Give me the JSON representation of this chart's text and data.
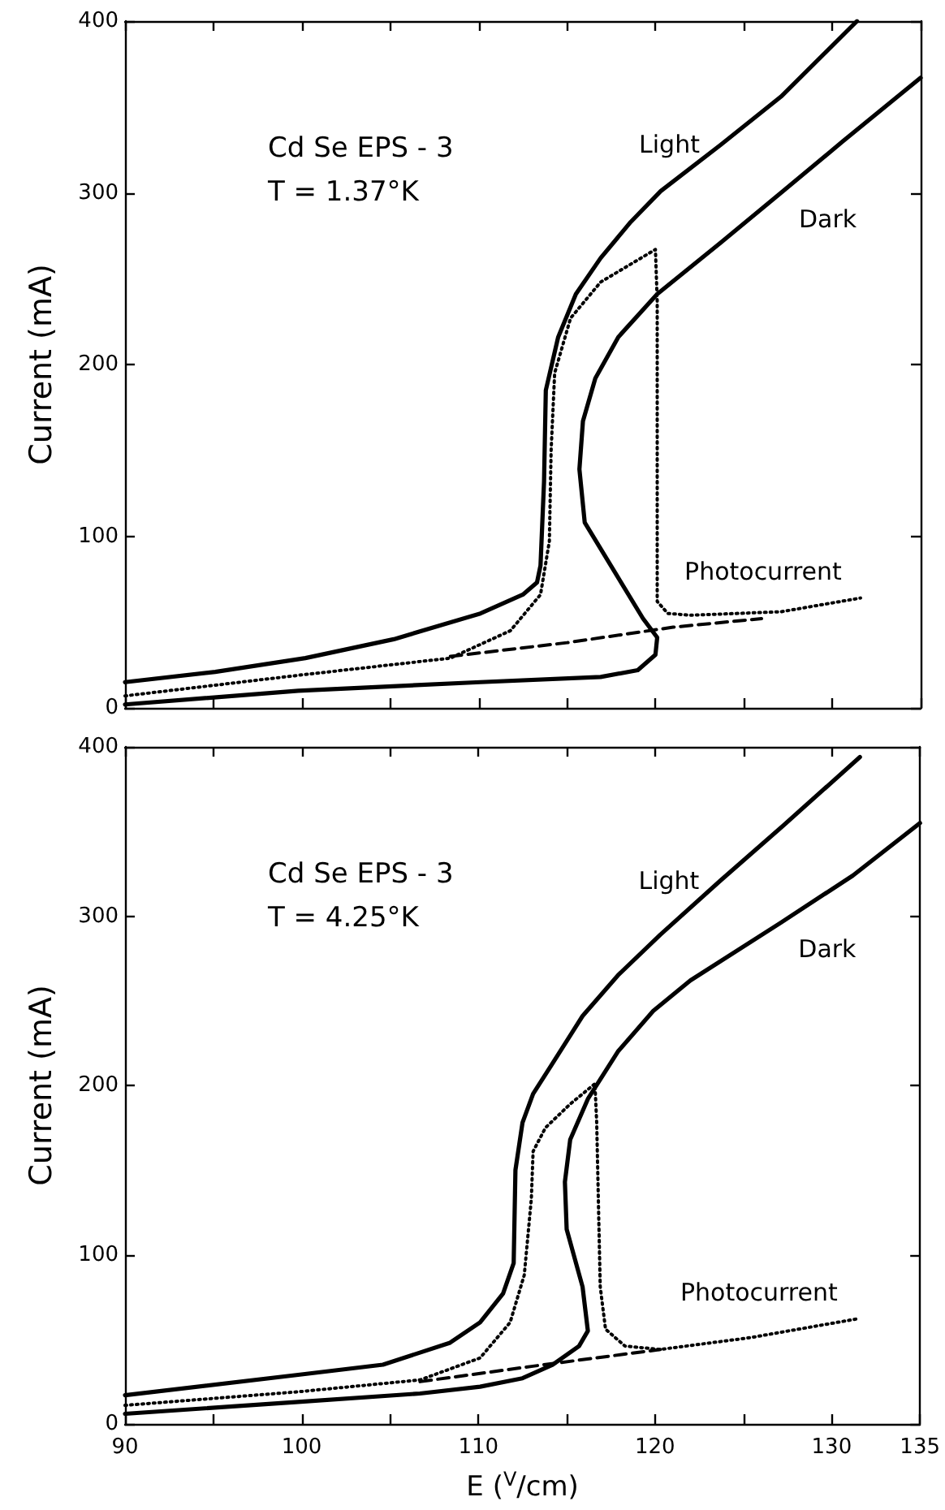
{
  "chart_data": [
    {
      "type": "line",
      "ylabel": "Current (mA)",
      "annotations": [
        "Cd Se EPS - 3",
        "T = 1.37°K"
      ],
      "xlim": [
        90,
        135
      ],
      "xticks": [
        90,
        {
          "value": 95,
          "label": null
        },
        100,
        {
          "value": 105,
          "label": null
        },
        110,
        {
          "value": 115,
          "label": null
        },
        120,
        {
          "value": 125,
          "label": null
        },
        130,
        135
      ],
      "ylim": [
        0,
        400
      ],
      "yticks": [
        0,
        100,
        200,
        300,
        400
      ],
      "tick_labels": "y",
      "marker": "none",
      "series": [
        {
          "name": "Light",
          "color": "#000000",
          "line_style": "solid",
          "x": [
            90,
            95.1,
            100.2,
            105.2,
            110.1,
            112.5,
            113.3,
            113.5,
            113.7,
            113.8,
            114.5,
            115.5,
            116.9,
            118.6,
            120.3,
            123.7,
            127.1,
            131.4
          ],
          "values": [
            15,
            21,
            29,
            40,
            55,
            66,
            73,
            83,
            132,
            185,
            216,
            241,
            262,
            283,
            301,
            328,
            356,
            400
          ]
        },
        {
          "name": "Dark",
          "color": "#000000",
          "line_style": "solid",
          "x": [
            90,
            99.8,
            110.1,
            116.9,
            119.0,
            120.0,
            120.1,
            119.3,
            116.0,
            115.7,
            115.9,
            116.6,
            117.9,
            120.1,
            123.7,
            127.1,
            130.6,
            135
          ],
          "values": [
            2,
            10,
            15,
            18,
            22,
            31,
            41,
            52,
            108,
            139,
            167,
            192,
            216,
            241,
            271,
            300,
            330,
            367
          ]
        },
        {
          "name": "Photocurrent",
          "color": "#000000",
          "line_style": "dotted",
          "x": [
            90,
            99.8,
            108.4,
            111.8,
            113.5,
            114.0,
            114.1,
            114.3,
            115.2,
            116.9,
            120.0,
            120.1,
            120.1,
            120.7,
            122.0,
            127.1,
            131.6
          ],
          "values": [
            7,
            19,
            29,
            45,
            66,
            97,
            150,
            195,
            227,
            248,
            267,
            237,
            62,
            55,
            54,
            56,
            64
          ]
        },
        {
          "color": "#000000",
          "line_style": "dashed",
          "x": [
            108.4,
            115,
            121,
            126
          ],
          "values": [
            30,
            38,
            47,
            52
          ]
        }
      ]
    },
    {
      "type": "line",
      "xlabel": "E ($^{V}$/cm)",
      "ylabel": "Current (mA)",
      "annotations": [
        "Cd Se EPS - 3",
        "T = 4.25°K"
      ],
      "xlim": [
        90,
        135
      ],
      "xticks": [
        90,
        {
          "value": 95,
          "label": null
        },
        100,
        {
          "value": 105,
          "label": null
        },
        110,
        {
          "value": 115,
          "label": null
        },
        120,
        {
          "value": 125,
          "label": null
        },
        130,
        135
      ],
      "ylim": [
        0,
        400
      ],
      "yticks": [
        0,
        100,
        200,
        300,
        400
      ],
      "marker": "none",
      "series": [
        {
          "name": "Light",
          "color": "#000000",
          "line_style": "solid",
          "x": [
            90,
            99.8,
            104.6,
            108.4,
            110.1,
            111.4,
            112.0,
            112.1,
            112.5,
            113.1,
            114.2,
            115.9,
            117.9,
            120.3,
            123.7,
            127.1,
            131.6
          ],
          "values": [
            17,
            29,
            35,
            48,
            60,
            77,
            95,
            150,
            178,
            195,
            213,
            241,
            265,
            289,
            321,
            352,
            394
          ]
        },
        {
          "name": "Dark",
          "color": "#000000",
          "line_style": "solid",
          "x": [
            90,
            99.8,
            106.7,
            110.1,
            112.5,
            114.2,
            115.7,
            116.2,
            115.9,
            115.0,
            114.9,
            115.2,
            116.2,
            117.9,
            119.9,
            122.0,
            127.1,
            131.2,
            135
          ],
          "values": [
            6,
            13,
            18,
            22,
            27,
            35,
            46,
            55,
            81,
            115,
            143,
            168,
            192,
            220,
            244,
            262,
            296,
            324,
            355
          ]
        },
        {
          "name": "Photocurrent",
          "color": "#000000",
          "line_style": "dotted",
          "x": [
            90,
            99.8,
            106.7,
            110.1,
            111.8,
            112.6,
            113.0,
            113.1,
            113.8,
            115.2,
            116.6,
            116.7,
            116.9,
            117.2,
            118.3,
            120.3,
            125.4,
            131.4
          ],
          "values": [
            11,
            19,
            26,
            39,
            60,
            88,
            133,
            161,
            175,
            189,
            201,
            178,
            81,
            56,
            46,
            44,
            51,
            62
          ]
        },
        {
          "color": "#000000",
          "line_style": "dashed",
          "x": [
            106.7,
            113,
            120.3
          ],
          "values": [
            25,
            34,
            44
          ]
        }
      ]
    }
  ]
}
